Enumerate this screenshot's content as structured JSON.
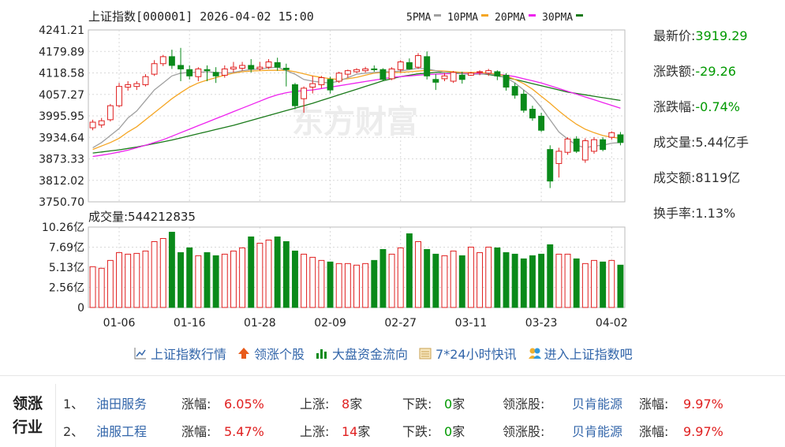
{
  "chart_data": {
    "type": "candlestick",
    "title": "上证指数[000001] 2026-04-02 15:00",
    "legend": [
      "5PMA",
      "10PMA",
      "20PMA",
      "30PMA"
    ],
    "legend_colors": [
      "#a0a0a0",
      "#f5a623",
      "#ee22ee",
      "#1a7a1a"
    ],
    "yticks": [
      "4241.21",
      "4179.89",
      "4118.58",
      "4057.27",
      "3995.95",
      "3934.64",
      "3873.33",
      "3812.02",
      "3750.70"
    ],
    "ylim": [
      3750.7,
      4241.21
    ],
    "xticks": [
      "01-06",
      "01-16",
      "01-28",
      "02-09",
      "02-27",
      "03-11",
      "03-23",
      "04-02"
    ],
    "xtick_index": [
      3,
      11,
      19,
      27,
      35,
      43,
      51,
      59
    ],
    "candles": [
      {
        "o": 3962,
        "c": 3978,
        "h": 3985,
        "l": 3955
      },
      {
        "o": 3970,
        "c": 3982,
        "h": 3990,
        "l": 3962
      },
      {
        "o": 3985,
        "c": 4025,
        "h": 4030,
        "l": 3980
      },
      {
        "o": 4025,
        "c": 4080,
        "h": 4090,
        "l": 4020
      },
      {
        "o": 4078,
        "c": 4085,
        "h": 4095,
        "l": 4068
      },
      {
        "o": 4080,
        "c": 4088,
        "h": 4095,
        "l": 4070
      },
      {
        "o": 4085,
        "c": 4108,
        "h": 4115,
        "l": 4080
      },
      {
        "o": 4115,
        "c": 4145,
        "h": 4155,
        "l": 4110
      },
      {
        "o": 4145,
        "c": 4165,
        "h": 4170,
        "l": 4138
      },
      {
        "o": 4165,
        "c": 4140,
        "h": 4185,
        "l": 4130
      },
      {
        "o": 4140,
        "c": 4130,
        "h": 4190,
        "l": 4095
      },
      {
        "o": 4128,
        "c": 4110,
        "h": 4140,
        "l": 4100
      },
      {
        "o": 4108,
        "c": 4130,
        "h": 4135,
        "l": 4095
      },
      {
        "o": 4128,
        "c": 4125,
        "h": 4140,
        "l": 4095
      },
      {
        "o": 4120,
        "c": 4110,
        "h": 4135,
        "l": 4090
      },
      {
        "o": 4112,
        "c": 4130,
        "h": 4140,
        "l": 4105
      },
      {
        "o": 4130,
        "c": 4135,
        "h": 4150,
        "l": 4120
      },
      {
        "o": 4132,
        "c": 4140,
        "h": 4150,
        "l": 4125
      },
      {
        "o": 4140,
        "c": 4130,
        "h": 4158,
        "l": 4120
      },
      {
        "o": 4130,
        "c": 4135,
        "h": 4150,
        "l": 4125
      },
      {
        "o": 4135,
        "c": 4150,
        "h": 4158,
        "l": 4130
      },
      {
        "o": 4148,
        "c": 4135,
        "h": 4162,
        "l": 4125
      },
      {
        "o": 4132,
        "c": 4128,
        "h": 4145,
        "l": 4080
      },
      {
        "o": 4085,
        "c": 4025,
        "h": 4090,
        "l": 4015
      },
      {
        "o": 4045,
        "c": 4075,
        "h": 4080,
        "l": 4005
      },
      {
        "o": 4078,
        "c": 4088,
        "h": 4110,
        "l": 4060
      },
      {
        "o": 4085,
        "c": 4105,
        "h": 4110,
        "l": 4075
      },
      {
        "o": 4100,
        "c": 4070,
        "h": 4108,
        "l": 4060
      },
      {
        "o": 4095,
        "c": 4118,
        "h": 4122,
        "l": 4090
      },
      {
        "o": 4115,
        "c": 4125,
        "h": 4128,
        "l": 4105
      },
      {
        "o": 4122,
        "c": 4128,
        "h": 4132,
        "l": 4118
      },
      {
        "o": 4125,
        "c": 4130,
        "h": 4136,
        "l": 4120
      },
      {
        "o": 4130,
        "c": 4128,
        "h": 4140,
        "l": 4122
      },
      {
        "o": 4128,
        "c": 4100,
        "h": 4132,
        "l": 4095
      },
      {
        "o": 4102,
        "c": 4130,
        "h": 4135,
        "l": 4098
      },
      {
        "o": 4128,
        "c": 4150,
        "h": 4155,
        "l": 4120
      },
      {
        "o": 4148,
        "c": 4130,
        "h": 4160,
        "l": 4128
      },
      {
        "o": 4135,
        "c": 4168,
        "h": 4175,
        "l": 4130
      },
      {
        "o": 4165,
        "c": 4110,
        "h": 4180,
        "l": 4100
      },
      {
        "o": 4100,
        "c": 4092,
        "h": 4115,
        "l": 4070
      },
      {
        "o": 4102,
        "c": 4110,
        "h": 4118,
        "l": 4095
      },
      {
        "o": 4095,
        "c": 4120,
        "h": 4124,
        "l": 4090
      },
      {
        "o": 4112,
        "c": 4100,
        "h": 4122,
        "l": 4088
      },
      {
        "o": 4112,
        "c": 4118,
        "h": 4122,
        "l": 4110
      },
      {
        "o": 4120,
        "c": 4122,
        "h": 4126,
        "l": 4112
      },
      {
        "o": 4118,
        "c": 4125,
        "h": 4130,
        "l": 4110
      },
      {
        "o": 4122,
        "c": 4110,
        "h": 4126,
        "l": 4098
      },
      {
        "o": 4112,
        "c": 4078,
        "h": 4118,
        "l": 4068
      },
      {
        "o": 4080,
        "c": 4055,
        "h": 4090,
        "l": 4045
      },
      {
        "o": 4058,
        "c": 4012,
        "h": 4070,
        "l": 4005
      },
      {
        "o": 4015,
        "c": 3990,
        "h": 4025,
        "l": 3982
      },
      {
        "o": 3995,
        "c": 3955,
        "h": 4005,
        "l": 3950
      },
      {
        "o": 3900,
        "c": 3810,
        "h": 3912,
        "l": 3790
      },
      {
        "o": 3860,
        "c": 3895,
        "h": 3905,
        "l": 3820
      },
      {
        "o": 3892,
        "c": 3930,
        "h": 3935,
        "l": 3885
      },
      {
        "o": 3930,
        "c": 3895,
        "h": 3938,
        "l": 3890
      },
      {
        "o": 3870,
        "c": 3925,
        "h": 3932,
        "l": 3862
      },
      {
        "o": 3895,
        "c": 3928,
        "h": 3935,
        "l": 3888
      },
      {
        "o": 3928,
        "c": 3900,
        "h": 3935,
        "l": 3895
      },
      {
        "o": 3935,
        "c": 3948,
        "h": 3952,
        "l": 3928
      },
      {
        "o": 3942,
        "c": 3920,
        "h": 3950,
        "l": 3912
      }
    ],
    "ma5": [
      3905,
      3920,
      3940,
      3960,
      3990,
      4010,
      4040,
      4070,
      4090,
      4110,
      4118,
      4120,
      4120,
      4122,
      4120,
      4118,
      4120,
      4125,
      4128,
      4130,
      4133,
      4135,
      4125,
      4115,
      4100,
      4095,
      4092,
      4090,
      4095,
      4105,
      4115,
      4118,
      4120,
      4122,
      4122,
      4124,
      4128,
      4132,
      4130,
      4125,
      4120,
      4118,
      4116,
      4115,
      4115,
      4116,
      4112,
      4105,
      4090,
      4070,
      4050,
      4020,
      3985,
      3950,
      3930,
      3912,
      3905,
      3910,
      3912,
      3918,
      3920
    ],
    "ma10": [
      3900,
      3910,
      3920,
      3932,
      3950,
      3965,
      3985,
      4005,
      4025,
      4045,
      4062,
      4078,
      4090,
      4098,
      4105,
      4112,
      4118,
      4122,
      4124,
      4125,
      4126,
      4126,
      4126,
      4122,
      4116,
      4110,
      4106,
      4102,
      4100,
      4102,
      4106,
      4112,
      4118,
      4120,
      4120,
      4120,
      4122,
      4124,
      4126,
      4125,
      4124,
      4122,
      4120,
      4120,
      4120,
      4118,
      4115,
      4110,
      4100,
      4088,
      4072,
      4052,
      4032,
      4010,
      3990,
      3972,
      3958,
      3948,
      3940,
      3935,
      3932
    ],
    "ma20": [
      3880,
      3884,
      3888,
      3893,
      3898,
      3905,
      3912,
      3920,
      3928,
      3938,
      3948,
      3958,
      3968,
      3978,
      3988,
      3998,
      4008,
      4018,
      4028,
      4038,
      4048,
      4056,
      4062,
      4066,
      4068,
      4070,
      4074,
      4078,
      4082,
      4086,
      4090,
      4094,
      4098,
      4102,
      4106,
      4108,
      4110,
      4112,
      4114,
      4115,
      4116,
      4117,
      4117,
      4117,
      4117,
      4116,
      4115,
      4112,
      4108,
      4102,
      4096,
      4090,
      4082,
      4074,
      4066,
      4058,
      4050,
      4042,
      4034,
      4026,
      4018
    ],
    "ma30": [
      3890,
      3893,
      3896,
      3899,
      3903,
      3907,
      3912,
      3917,
      3922,
      3927,
      3933,
      3939,
      3945,
      3951,
      3957,
      3963,
      3969,
      3976,
      3983,
      3990,
      3997,
      4004,
      4011,
      4018,
      4025,
      4032,
      4040,
      4048,
      4056,
      4064,
      4072,
      4080,
      4088,
      4096,
      4102,
      4108,
      4112,
      4116,
      4118,
      4120,
      4120,
      4120,
      4120,
      4118,
      4116,
      4114,
      4110,
      4106,
      4100,
      4094,
      4088,
      4082,
      4076,
      4070,
      4064,
      4060,
      4056,
      4052,
      4048,
      4044,
      4040
    ],
    "volume_label": "成交量:544212835",
    "volume_yticks": [
      "10.26亿",
      "7.69亿",
      "5.13亿",
      "2.56亿",
      "0"
    ],
    "volume_ylim": [
      0,
      10.26
    ],
    "volume": [
      5.2,
      5.0,
      6.0,
      7.0,
      6.8,
      6.9,
      7.2,
      8.4,
      8.8,
      9.6,
      7.0,
      7.6,
      6.6,
      7.0,
      6.6,
      6.8,
      7.2,
      7.6,
      9.0,
      8.2,
      8.6,
      9.0,
      8.4,
      7.2,
      6.8,
      6.4,
      6.0,
      5.8,
      5.6,
      5.6,
      5.4,
      5.6,
      6.0,
      7.4,
      6.8,
      7.6,
      9.4,
      8.4,
      7.4,
      6.8,
      6.6,
      7.2,
      6.6,
      7.7,
      7.0,
      7.7,
      7.6,
      7.0,
      6.8,
      6.2,
      6.6,
      6.8,
      8.0,
      6.8,
      6.8,
      6.2,
      5.6,
      6.0,
      5.8,
      6.0,
      5.4
    ],
    "down": [
      false,
      false,
      false,
      false,
      false,
      false,
      false,
      false,
      false,
      true,
      true,
      true,
      false,
      true,
      true,
      false,
      false,
      false,
      true,
      false,
      false,
      true,
      true,
      true,
      false,
      false,
      false,
      true,
      false,
      false,
      false,
      false,
      true,
      true,
      false,
      false,
      true,
      false,
      true,
      true,
      false,
      false,
      true,
      false,
      false,
      false,
      true,
      true,
      true,
      true,
      true,
      true,
      true,
      false,
      false,
      true,
      false,
      false,
      true,
      false,
      true
    ]
  },
  "stats": [
    {
      "label": "最新价:",
      "value": "3919.29",
      "color": "green"
    },
    {
      "label": "涨跌额:",
      "value": "-29.26",
      "color": "green"
    },
    {
      "label": "涨跌幅:",
      "value": "-0.74%",
      "color": "green"
    },
    {
      "label": "成交量:",
      "value": "5.44亿手",
      "color": "plain"
    },
    {
      "label": "成交额:",
      "value": "8119亿",
      "color": "plain"
    },
    {
      "label": "换手率:",
      "value": "1.13%",
      "color": "plain"
    }
  ],
  "links": [
    {
      "label": "上证指数行情",
      "icon": "line-chart-icon"
    },
    {
      "label": "领涨个股",
      "icon": "up-arrow-icon"
    },
    {
      "label": "大盘资金流向",
      "icon": "bar-chart-icon"
    },
    {
      "label": "7*24小时快讯",
      "icon": "calendar-icon"
    },
    {
      "label": "进入上证指数吧",
      "icon": "people-icon"
    }
  ],
  "sector": {
    "title_line1": "领涨",
    "title_line2": "行业",
    "rows": [
      {
        "index": "1、",
        "name": "油田服务",
        "chg_label": "涨幅:",
        "chg": "6.05%",
        "up_label": "上涨:",
        "up": "8",
        "up_unit": "家",
        "down_label": "下跌:",
        "down": "0",
        "down_unit": "家",
        "leader_label": "领涨股:",
        "leader": "贝肯能源",
        "leader_chg_label": "涨幅:",
        "leader_chg": "9.97%"
      },
      {
        "index": "2、",
        "name": "油服工程",
        "chg_label": "涨幅:",
        "chg": "5.47%",
        "up_label": "上涨:",
        "up": "14",
        "up_unit": "家",
        "down_label": "下跌:",
        "down": "0",
        "down_unit": "家",
        "leader_label": "领涨股:",
        "leader": "贝肯能源",
        "leader_chg_label": "涨幅:",
        "leader_chg": "9.97%"
      }
    ]
  },
  "watermark": "东方财富",
  "colors": {
    "up": "#e02020",
    "down": "#0a8a1a",
    "link": "#3366aa",
    "text_green": "#009900"
  }
}
